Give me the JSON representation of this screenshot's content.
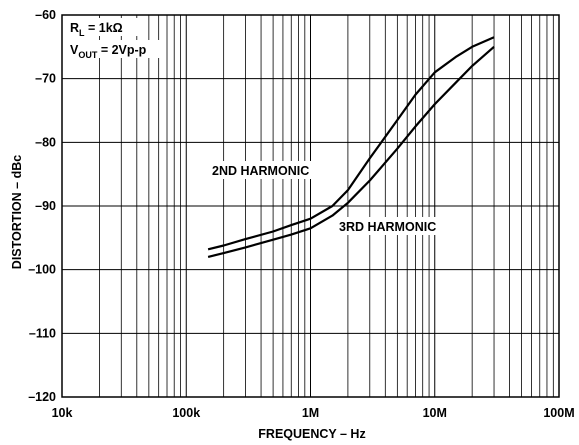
{
  "chart_data": {
    "type": "line",
    "xlabel": "FREQUENCY – Hz",
    "ylabel": "DISTORTION – dBc",
    "x_scale": "log",
    "xlim": [
      10000,
      100000000
    ],
    "ylim": [
      -120,
      -60
    ],
    "x_ticks": [
      {
        "value": 10000,
        "label": "10k"
      },
      {
        "value": 100000,
        "label": "100k"
      },
      {
        "value": 1000000,
        "label": "1M"
      },
      {
        "value": 10000000,
        "label": "10M"
      },
      {
        "value": 100000000,
        "label": "100M"
      }
    ],
    "y_ticks": [
      {
        "value": -60,
        "label": "–60"
      },
      {
        "value": -70,
        "label": "–70"
      },
      {
        "value": -80,
        "label": "–80"
      },
      {
        "value": -90,
        "label": "–90"
      },
      {
        "value": -100,
        "label": "–100"
      },
      {
        "value": -110,
        "label": "–110"
      },
      {
        "value": -120,
        "label": "–120"
      }
    ],
    "grid": true,
    "series": [
      {
        "name": "2ND HARMONIC",
        "points": [
          [
            150000,
            -96.8
          ],
          [
            200000,
            -96.2
          ],
          [
            300000,
            -95.2
          ],
          [
            500000,
            -94.0
          ],
          [
            700000,
            -93.0
          ],
          [
            1000000,
            -92.0
          ],
          [
            1500000,
            -90.0
          ],
          [
            2000000,
            -87.5
          ],
          [
            3000000,
            -82.5
          ],
          [
            5000000,
            -76.5
          ],
          [
            7000000,
            -72.5
          ],
          [
            10000000,
            -69.0
          ],
          [
            15000000,
            -66.5
          ],
          [
            20000000,
            -65.0
          ],
          [
            30000000,
            -63.5
          ]
        ]
      },
      {
        "name": "3RD HARMONIC",
        "points": [
          [
            150000,
            -98.0
          ],
          [
            200000,
            -97.4
          ],
          [
            300000,
            -96.5
          ],
          [
            500000,
            -95.3
          ],
          [
            700000,
            -94.5
          ],
          [
            1000000,
            -93.5
          ],
          [
            1500000,
            -91.5
          ],
          [
            2000000,
            -89.5
          ],
          [
            3000000,
            -86.0
          ],
          [
            5000000,
            -81.0
          ],
          [
            7000000,
            -77.5
          ],
          [
            10000000,
            -74.0
          ],
          [
            15000000,
            -70.5
          ],
          [
            20000000,
            -68.0
          ],
          [
            30000000,
            -65.0
          ]
        ]
      }
    ],
    "annotations": {
      "rl": {
        "main": "R",
        "sub": "L",
        "rest": " = 1kΩ"
      },
      "vout": {
        "main": "V",
        "sub": "OUT",
        "rest": " = 2Vp-p"
      },
      "label_2nd": "2ND HARMONIC",
      "label_3rd": "3RD HARMONIC"
    }
  }
}
